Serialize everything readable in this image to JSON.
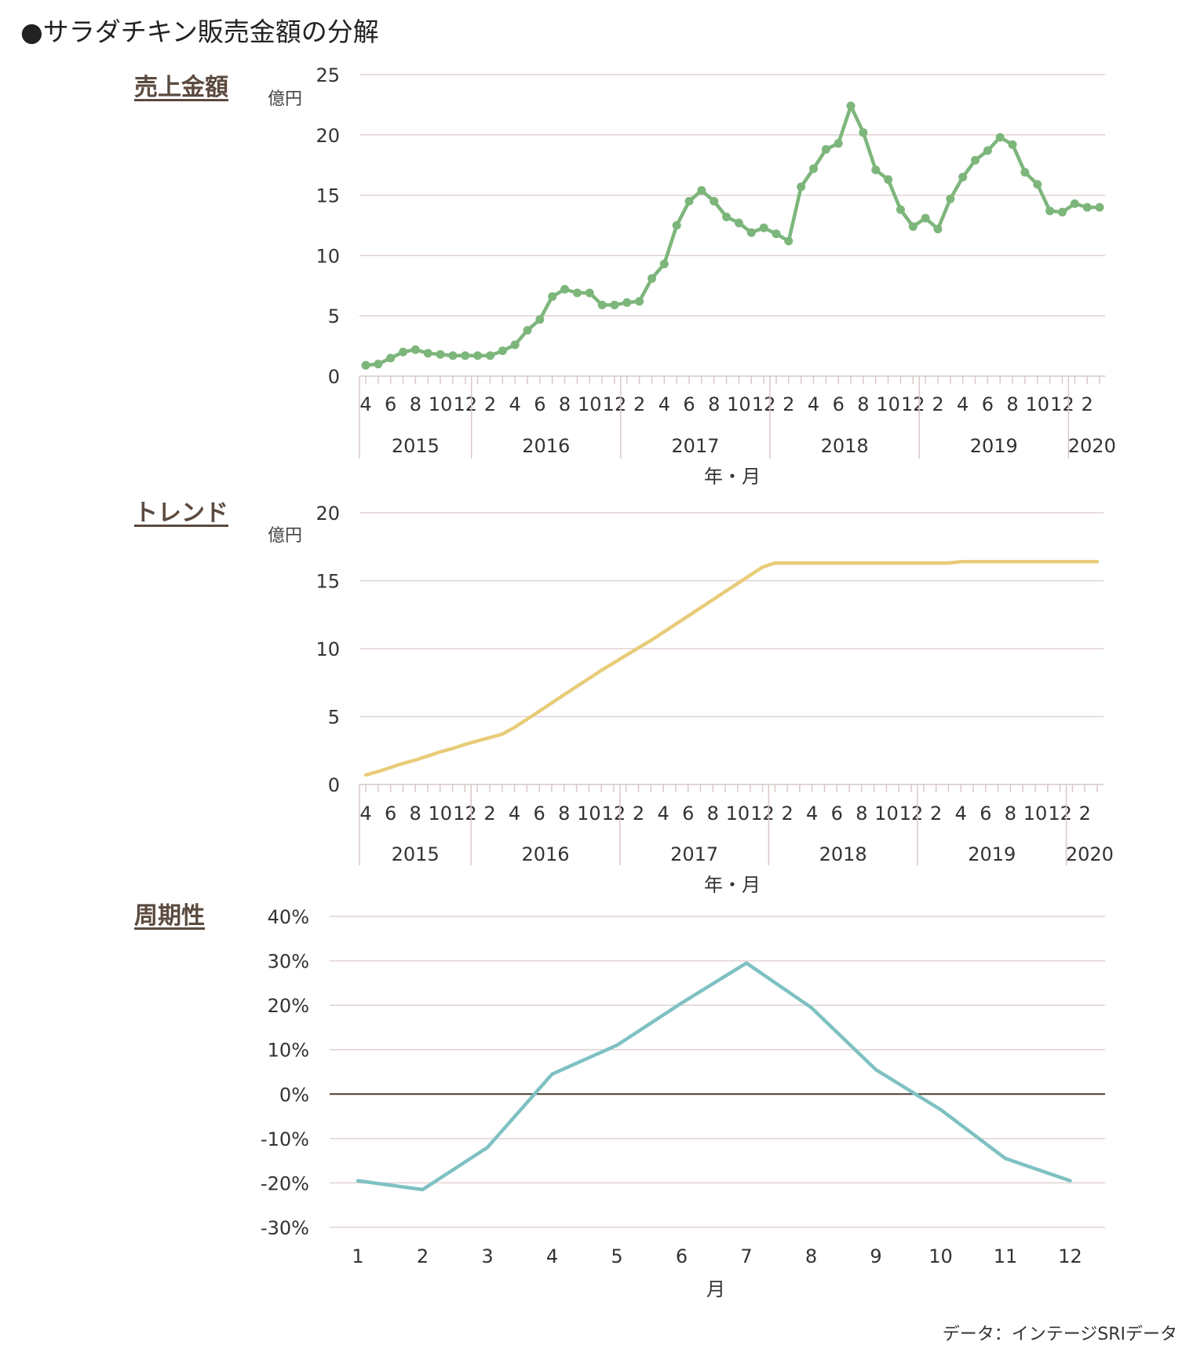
{
  "title": "●サラダチキン販売金額の分解",
  "source": "データ：インテージSRIデータ",
  "chart_data": [
    {
      "type": "line",
      "title": "売上金額",
      "unit": "億円",
      "xlabel": "年・月",
      "ylim": [
        0,
        25
      ],
      "yticks": [
        0,
        5,
        10,
        15,
        20,
        25
      ],
      "month_ticks": [
        "4",
        "6",
        "8",
        "10",
        "12",
        "2",
        "4",
        "6",
        "8",
        "10",
        "12",
        "2",
        "4",
        "6",
        "8",
        "10",
        "12",
        "2",
        "4",
        "6",
        "8",
        "10",
        "12",
        "2",
        "4",
        "6",
        "8",
        "10",
        "12",
        "2"
      ],
      "years": [
        "2015",
        "2016",
        "2017",
        "2018",
        "2019",
        "2020"
      ],
      "x": [
        "2015-04",
        "2015-05",
        "2015-06",
        "2015-07",
        "2015-08",
        "2015-09",
        "2015-10",
        "2015-11",
        "2015-12",
        "2016-01",
        "2016-02",
        "2016-03",
        "2016-04",
        "2016-05",
        "2016-06",
        "2016-07",
        "2016-08",
        "2016-09",
        "2016-10",
        "2016-11",
        "2016-12",
        "2017-01",
        "2017-02",
        "2017-03",
        "2017-04",
        "2017-05",
        "2017-06",
        "2017-07",
        "2017-08",
        "2017-09",
        "2017-10",
        "2017-11",
        "2017-12",
        "2018-01",
        "2018-02",
        "2018-03",
        "2018-04",
        "2018-05",
        "2018-06",
        "2018-07",
        "2018-08",
        "2018-09",
        "2018-10",
        "2018-11",
        "2018-12",
        "2019-01",
        "2019-02",
        "2019-03",
        "2019-04",
        "2019-05",
        "2019-06",
        "2019-07",
        "2019-08",
        "2019-09",
        "2019-10",
        "2019-11",
        "2019-12",
        "2020-01",
        "2020-02",
        "2020-03"
      ],
      "series": [
        {
          "color": "#7db67b",
          "markers": true,
          "values": [
            0.9,
            1.0,
            1.5,
            2.0,
            2.2,
            1.9,
            1.8,
            1.7,
            1.7,
            1.7,
            1.7,
            2.1,
            2.6,
            3.8,
            4.7,
            6.6,
            7.2,
            6.9,
            6.9,
            5.9,
            5.9,
            6.1,
            6.2,
            8.1,
            9.3,
            12.5,
            14.5,
            15.4,
            14.5,
            13.2,
            12.7,
            11.9,
            12.3,
            11.8,
            11.2,
            15.7,
            17.2,
            18.8,
            19.3,
            22.4,
            20.2,
            17.1,
            16.3,
            13.8,
            12.4,
            13.1,
            12.2,
            14.7,
            16.5,
            17.9,
            18.7,
            19.8,
            19.2,
            16.9,
            15.9,
            13.7,
            13.6,
            14.3,
            14.0,
            14.0
          ]
        }
      ]
    },
    {
      "type": "line",
      "title": "トレンド",
      "unit": "億円",
      "xlabel": "年・月",
      "ylim": [
        0,
        20
      ],
      "yticks": [
        0,
        5,
        10,
        15,
        20
      ],
      "month_ticks": [
        "4",
        "6",
        "8",
        "10",
        "12",
        "2",
        "4",
        "6",
        "8",
        "10",
        "12",
        "2",
        "4",
        "6",
        "8",
        "10",
        "12",
        "2",
        "4",
        "6",
        "8",
        "10",
        "12",
        "2",
        "4",
        "6",
        "8",
        "10",
        "12",
        "2"
      ],
      "years": [
        "2015",
        "2016",
        "2017",
        "2018",
        "2019",
        "2020"
      ],
      "x": [
        "2015-04",
        "2015-05",
        "2015-06",
        "2015-07",
        "2015-08",
        "2015-09",
        "2015-10",
        "2015-11",
        "2015-12",
        "2016-01",
        "2016-02",
        "2016-03",
        "2016-04",
        "2016-05",
        "2016-06",
        "2016-07",
        "2016-08",
        "2016-09",
        "2016-10",
        "2016-11",
        "2016-12",
        "2017-01",
        "2017-02",
        "2017-03",
        "2017-04",
        "2017-05",
        "2017-06",
        "2017-07",
        "2017-08",
        "2017-09",
        "2017-10",
        "2017-11",
        "2017-12",
        "2018-01",
        "2018-02",
        "2018-03",
        "2018-04",
        "2018-05",
        "2018-06",
        "2018-07",
        "2018-08",
        "2018-09",
        "2018-10",
        "2018-11",
        "2018-12",
        "2019-01",
        "2019-02",
        "2019-03",
        "2019-04",
        "2019-05",
        "2019-06",
        "2019-07",
        "2019-08",
        "2019-09",
        "2019-10",
        "2019-11",
        "2019-12",
        "2020-01",
        "2020-02",
        "2020-03"
      ],
      "series": [
        {
          "color": "#e8cc7a",
          "markers": false,
          "values": [
            0.7,
            0.95,
            1.25,
            1.55,
            1.8,
            2.1,
            2.4,
            2.65,
            2.95,
            3.2,
            3.45,
            3.7,
            4.2,
            4.8,
            5.4,
            6.0,
            6.6,
            7.2,
            7.8,
            8.4,
            8.95,
            9.5,
            10.05,
            10.6,
            11.2,
            11.8,
            12.4,
            13.0,
            13.6,
            14.2,
            14.8,
            15.4,
            16.0,
            16.3,
            16.3,
            16.3,
            16.3,
            16.3,
            16.3,
            16.3,
            16.3,
            16.3,
            16.3,
            16.3,
            16.3,
            16.3,
            16.3,
            16.3,
            16.4,
            16.4,
            16.4,
            16.4,
            16.4,
            16.4,
            16.4,
            16.4,
            16.4,
            16.4,
            16.4,
            16.4
          ]
        }
      ]
    },
    {
      "type": "line",
      "title": "周期性",
      "xlabel": "月",
      "ylim": [
        -30,
        40
      ],
      "yticks": [
        -30,
        -20,
        -10,
        0,
        10,
        20,
        30,
        40
      ],
      "ytick_labels": [
        "-30%",
        "-20%",
        "-10%",
        "0%",
        "10%",
        "20%",
        "30%",
        "40%"
      ],
      "categories": [
        "1",
        "2",
        "3",
        "4",
        "5",
        "6",
        "7",
        "8",
        "9",
        "10",
        "11",
        "12"
      ],
      "series": [
        {
          "color": "#7fc1c3",
          "markers": false,
          "values": [
            -19.5,
            -21.5,
            -12.0,
            4.5,
            11.0,
            20.5,
            29.5,
            19.5,
            5.5,
            -3.5,
            -14.5,
            -19.5
          ]
        }
      ]
    }
  ]
}
